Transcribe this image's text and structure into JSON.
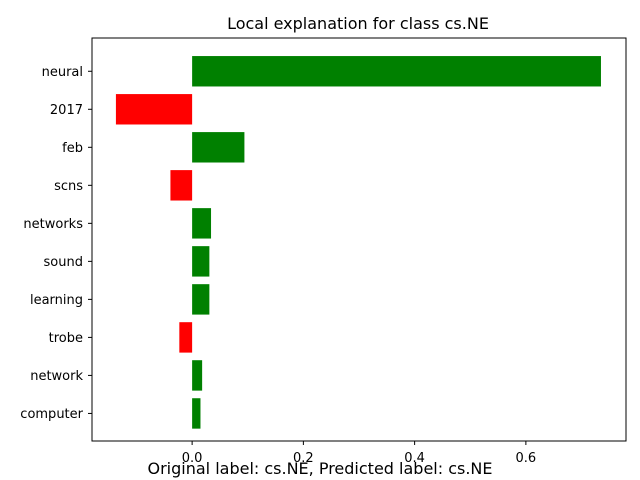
{
  "chart_data": {
    "type": "bar",
    "orientation": "horizontal",
    "title": "Local explanation for class cs.NE",
    "xlabel": "",
    "ylabel": "",
    "categories": [
      "neural",
      "2017",
      "feb",
      "scns",
      "networks",
      "sound",
      "learning",
      "trobe",
      "network",
      "computer"
    ],
    "values": [
      0.735,
      -0.137,
      0.094,
      -0.039,
      0.034,
      0.031,
      0.031,
      -0.023,
      0.018,
      0.015
    ],
    "xlim": [
      -0.18,
      0.78
    ],
    "xticks": [
      0.0,
      0.2,
      0.4,
      0.6
    ],
    "xtick_labels": [
      "0.0",
      "0.2",
      "0.4",
      "0.6"
    ],
    "grid": false,
    "legend": "none"
  },
  "colors": {
    "positive": "#008000",
    "negative": "#ff0000"
  },
  "footer": {
    "caption": "Original label: cs.NE, Predicted label: cs.NE"
  }
}
